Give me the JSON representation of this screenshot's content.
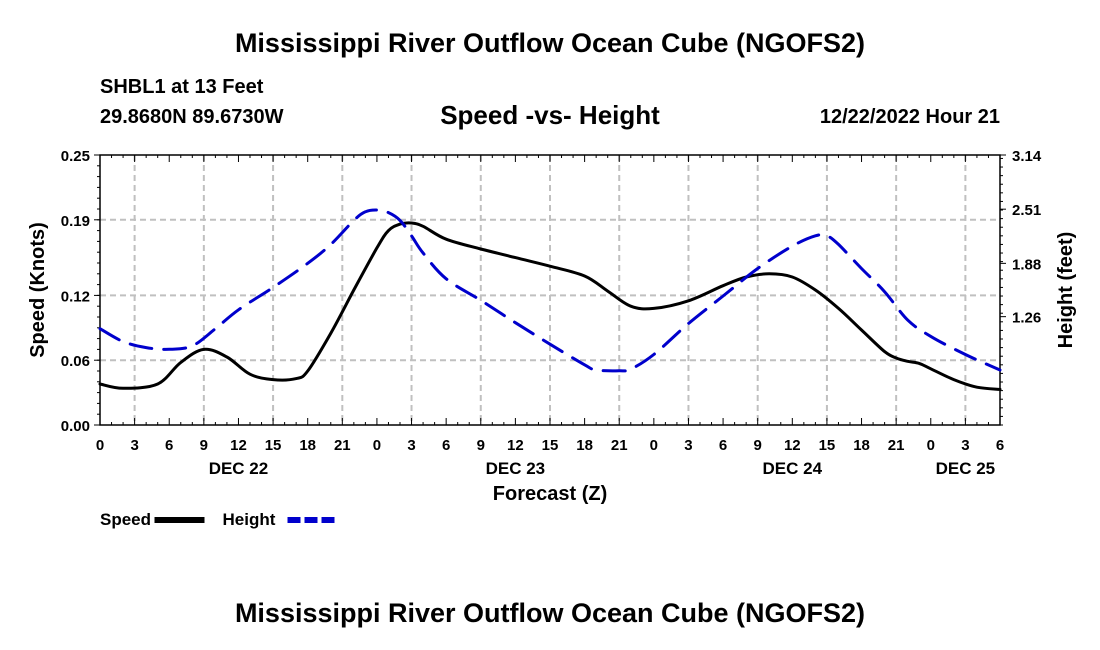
{
  "header": {
    "title": "Mississippi River Outflow Ocean Cube (NGOFS2)",
    "station": "SHBL1 at 13 Feet",
    "coordinates": "29.8680N  89.6730W",
    "chart_title": "Speed -vs- Height",
    "datetime": "12/22/2022 Hour 21"
  },
  "footer": {
    "title": "Mississippi River Outflow Ocean Cube (NGOFS2)"
  },
  "chart_data": {
    "type": "line",
    "title": "Speed -vs- Height",
    "xlabel": "Forecast (Z)",
    "ylabel": "Speed (Knots)",
    "y2label": "Height (feet)",
    "x_unit": "hours since 00Z Dec 22",
    "xlim": [
      0,
      78
    ],
    "ylim": [
      0,
      0.25
    ],
    "y2lim": [
      0,
      3.14
    ],
    "x_tick_hours": [
      0,
      3,
      6,
      9,
      12,
      15,
      18,
      21,
      24,
      27,
      30,
      33,
      36,
      39,
      42,
      45,
      48,
      51,
      54,
      57,
      60,
      63,
      66,
      69,
      72,
      75,
      78
    ],
    "x_tick_labels": [
      "0",
      "3",
      "6",
      "9",
      "12",
      "15",
      "18",
      "21",
      "0",
      "3",
      "6",
      "9",
      "12",
      "15",
      "18",
      "21",
      "0",
      "3",
      "6",
      "9",
      "12",
      "15",
      "18",
      "21",
      "0",
      "3",
      "6"
    ],
    "date_labels": [
      {
        "hour": 12,
        "label": "DEC 22"
      },
      {
        "hour": 36,
        "label": "DEC 23"
      },
      {
        "hour": 60,
        "label": "DEC 24"
      },
      {
        "hour": 75,
        "label": "DEC 25"
      }
    ],
    "y_ticks": [
      0.0,
      0.06,
      0.12,
      0.19,
      0.25
    ],
    "y_tick_labels": [
      "0.00",
      "0.06",
      "0.12",
      "0.19",
      "0.25"
    ],
    "y2_ticks": [
      1.26,
      1.88,
      2.51,
      3.14
    ],
    "y2_tick_labels": [
      "1.26",
      "1.88",
      "2.51",
      "3.14"
    ],
    "grid": true,
    "legend_position": "bottom-left",
    "series": [
      {
        "name": "Speed",
        "axis": "left",
        "color": "#000000",
        "dash": "solid",
        "x": [
          0,
          2,
          5,
          7,
          9,
          11,
          13,
          15,
          17,
          18,
          20,
          22,
          24,
          25,
          26,
          27,
          28,
          30,
          33,
          36,
          39,
          42,
          44,
          46,
          48,
          51,
          54,
          56,
          58,
          60,
          62,
          64,
          66,
          68,
          69,
          70,
          71,
          72,
          74,
          76,
          78
        ],
        "values": [
          0.038,
          0.034,
          0.038,
          0.058,
          0.07,
          0.063,
          0.047,
          0.042,
          0.043,
          0.05,
          0.085,
          0.125,
          0.164,
          0.18,
          0.186,
          0.187,
          0.184,
          0.172,
          0.163,
          0.155,
          0.147,
          0.138,
          0.124,
          0.11,
          0.108,
          0.115,
          0.129,
          0.137,
          0.14,
          0.137,
          0.125,
          0.108,
          0.088,
          0.068,
          0.062,
          0.059,
          0.057,
          0.052,
          0.042,
          0.035,
          0.033
        ]
      },
      {
        "name": "Height",
        "axis": "right",
        "color": "#0000cc",
        "dash": "dashed",
        "x": [
          0,
          2,
          4,
          6,
          8,
          10,
          12,
          15,
          18,
          20,
          22,
          23,
          24,
          25,
          26,
          27,
          28,
          30,
          33,
          36,
          39,
          42,
          43,
          45,
          46,
          48,
          51,
          54,
          57,
          60,
          62,
          63,
          64,
          66,
          68,
          70,
          72,
          75,
          78
        ],
        "values": [
          1.12,
          0.97,
          0.9,
          0.88,
          0.92,
          1.12,
          1.34,
          1.6,
          1.88,
          2.1,
          2.38,
          2.48,
          2.5,
          2.47,
          2.38,
          2.2,
          2.0,
          1.7,
          1.45,
          1.19,
          0.94,
          0.7,
          0.64,
          0.63,
          0.65,
          0.82,
          1.18,
          1.5,
          1.82,
          2.08,
          2.2,
          2.2,
          2.1,
          1.82,
          1.55,
          1.22,
          1.03,
          0.82,
          0.64
        ]
      }
    ],
    "legend": [
      {
        "label": "Speed",
        "color": "#000000",
        "dash": "solid"
      },
      {
        "label": "Height",
        "color": "#0000cc",
        "dash": "dashed"
      }
    ]
  }
}
